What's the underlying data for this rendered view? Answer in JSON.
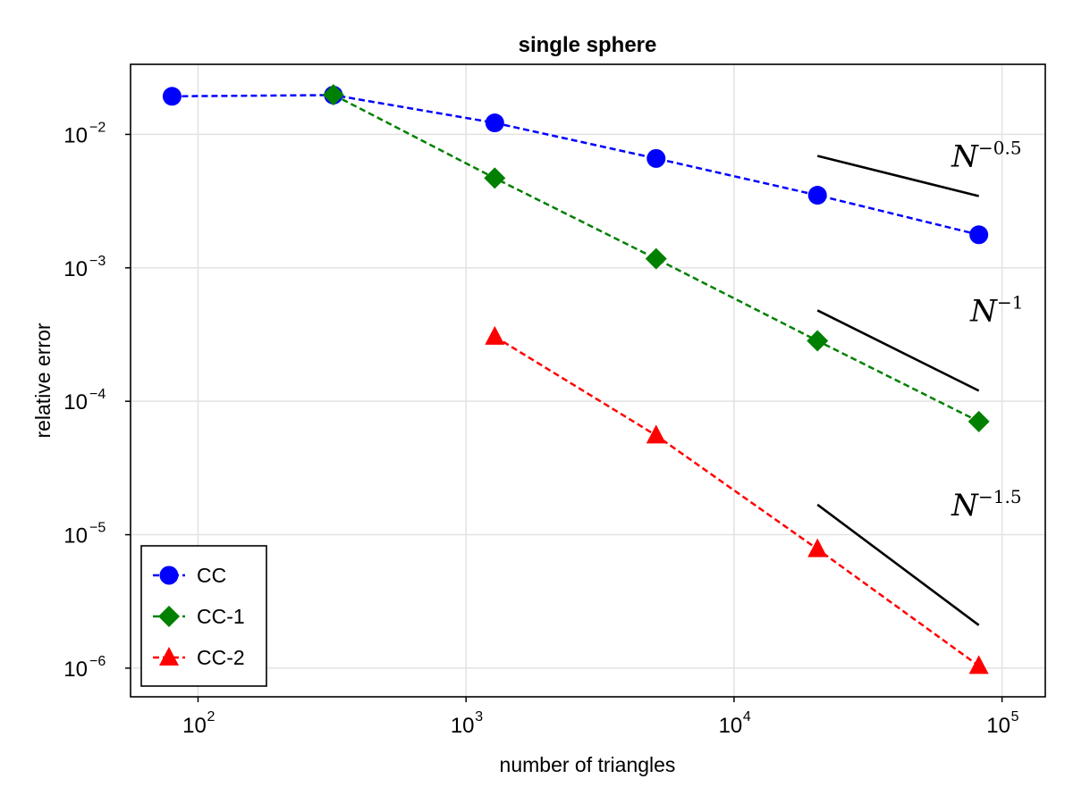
{
  "chart_data": {
    "type": "line",
    "title": "single sphere",
    "xlabel": "number of triangles",
    "ylabel": "relative error",
    "xscale": "log",
    "yscale": "log",
    "xlim": [
      56,
      145000
    ],
    "ylim": [
      6.1e-07,
      0.0335
    ],
    "grid": true,
    "legend_position": "bottom-left",
    "x_ticks": [
      {
        "value": 100,
        "base": "10",
        "exp": "2"
      },
      {
        "value": 1000,
        "base": "10",
        "exp": "3"
      },
      {
        "value": 10000,
        "base": "10",
        "exp": "4"
      },
      {
        "value": 100000,
        "base": "10",
        "exp": "5"
      }
    ],
    "y_ticks": [
      {
        "value": 0.01,
        "base": "10",
        "exp": "−2"
      },
      {
        "value": 0.001,
        "base": "10",
        "exp": "−3"
      },
      {
        "value": 0.0001,
        "base": "10",
        "exp": "−4"
      },
      {
        "value": 1e-05,
        "base": "10",
        "exp": "−5"
      },
      {
        "value": 1e-06,
        "base": "10",
        "exp": "−6"
      }
    ],
    "series": [
      {
        "name": "CC",
        "color": "#0000ff",
        "marker": "circle",
        "x": [
          80,
          320,
          1280,
          5120,
          20480,
          81920
        ],
        "y": [
          0.0193,
          0.0197,
          0.0122,
          0.0066,
          0.0035,
          0.00177
        ]
      },
      {
        "name": "CC-1",
        "color": "#008000",
        "marker": "diamond",
        "x": [
          320,
          1280,
          5120,
          20480,
          81920
        ],
        "y": [
          0.0198,
          0.0047,
          0.00117,
          0.000284,
          7.05e-05
        ]
      },
      {
        "name": "CC-2",
        "color": "#ff0000",
        "marker": "triangle",
        "x": [
          1280,
          5120,
          20480,
          81920
        ],
        "y": [
          0.000305,
          5.55e-05,
          7.8e-06,
          1.04e-06
        ]
      }
    ],
    "reference_lines": [
      {
        "label_base": "N",
        "label_exp": "−0.5",
        "x": [
          20480,
          81920
        ],
        "y": [
          0.0069,
          0.00345
        ]
      },
      {
        "label_base": "N",
        "label_exp": "−1",
        "x": [
          20480,
          81920
        ],
        "y": [
          0.00048,
          0.00012
        ]
      },
      {
        "label_base": "N",
        "label_exp": "−1.5",
        "x": [
          20480,
          81920
        ],
        "y": [
          1.68e-05,
          2.1e-06
        ]
      }
    ]
  }
}
